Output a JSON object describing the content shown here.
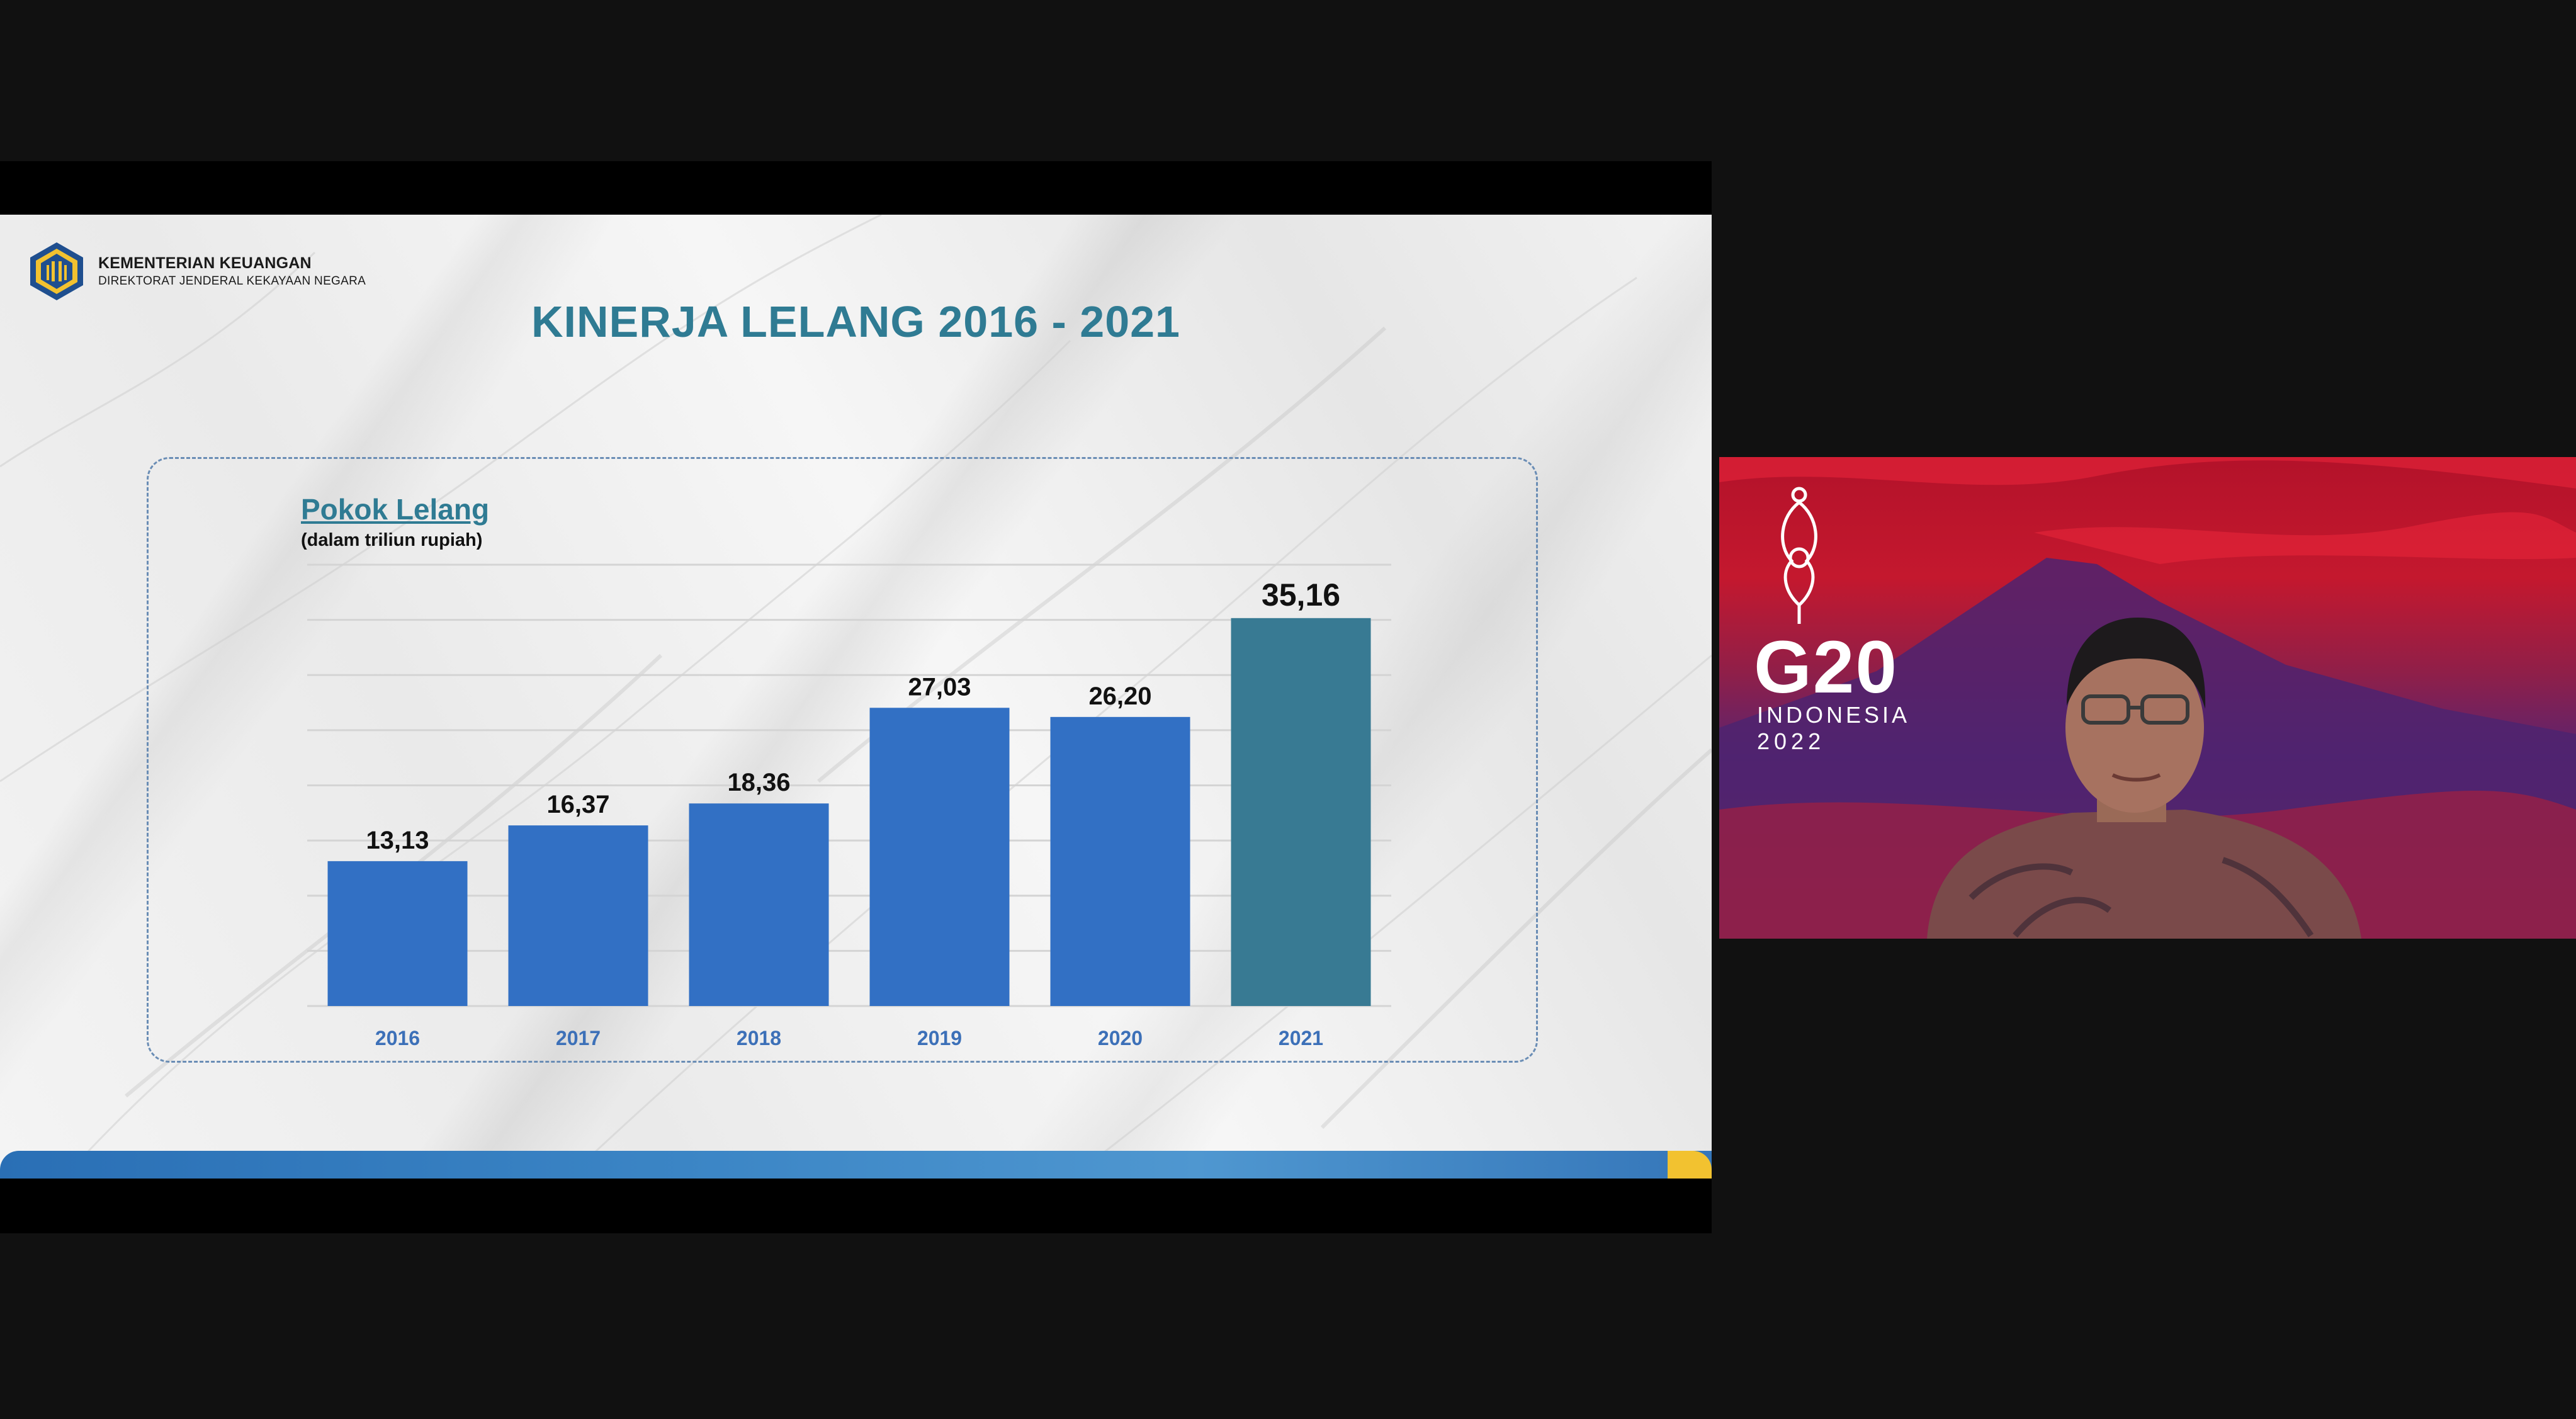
{
  "slide": {
    "org_name": "KEMENTERIAN KEUANGAN",
    "org_subname": "DIREKTORAT JENDERAL KEKAYAAN NEGARA",
    "title": "KINERJA LELANG 2016 - 2021",
    "chart_heading": "Pokok Lelang",
    "chart_subheading": "(dalam triliun rupiah)"
  },
  "colors": {
    "title": "#2f7b93",
    "bar": "#3270c4",
    "bar_highlight": "#387a93",
    "year_label": "#3c70b8",
    "background": "#111111"
  },
  "chart_data": {
    "type": "bar",
    "categories": [
      "2016",
      "2017",
      "2018",
      "2019",
      "2020",
      "2021"
    ],
    "values": [
      13.13,
      16.37,
      18.36,
      27.03,
      26.2,
      35.16
    ],
    "value_labels": [
      "13,13",
      "16,37",
      "18,36",
      "27,03",
      "26,20",
      "35,16"
    ],
    "highlight_index": 5,
    "ylim": [
      0,
      40
    ],
    "grid": true,
    "legend": "none"
  },
  "video": {
    "logo_text": "G20",
    "logo_sub1": "INDONESIA",
    "logo_sub2": "2022"
  }
}
